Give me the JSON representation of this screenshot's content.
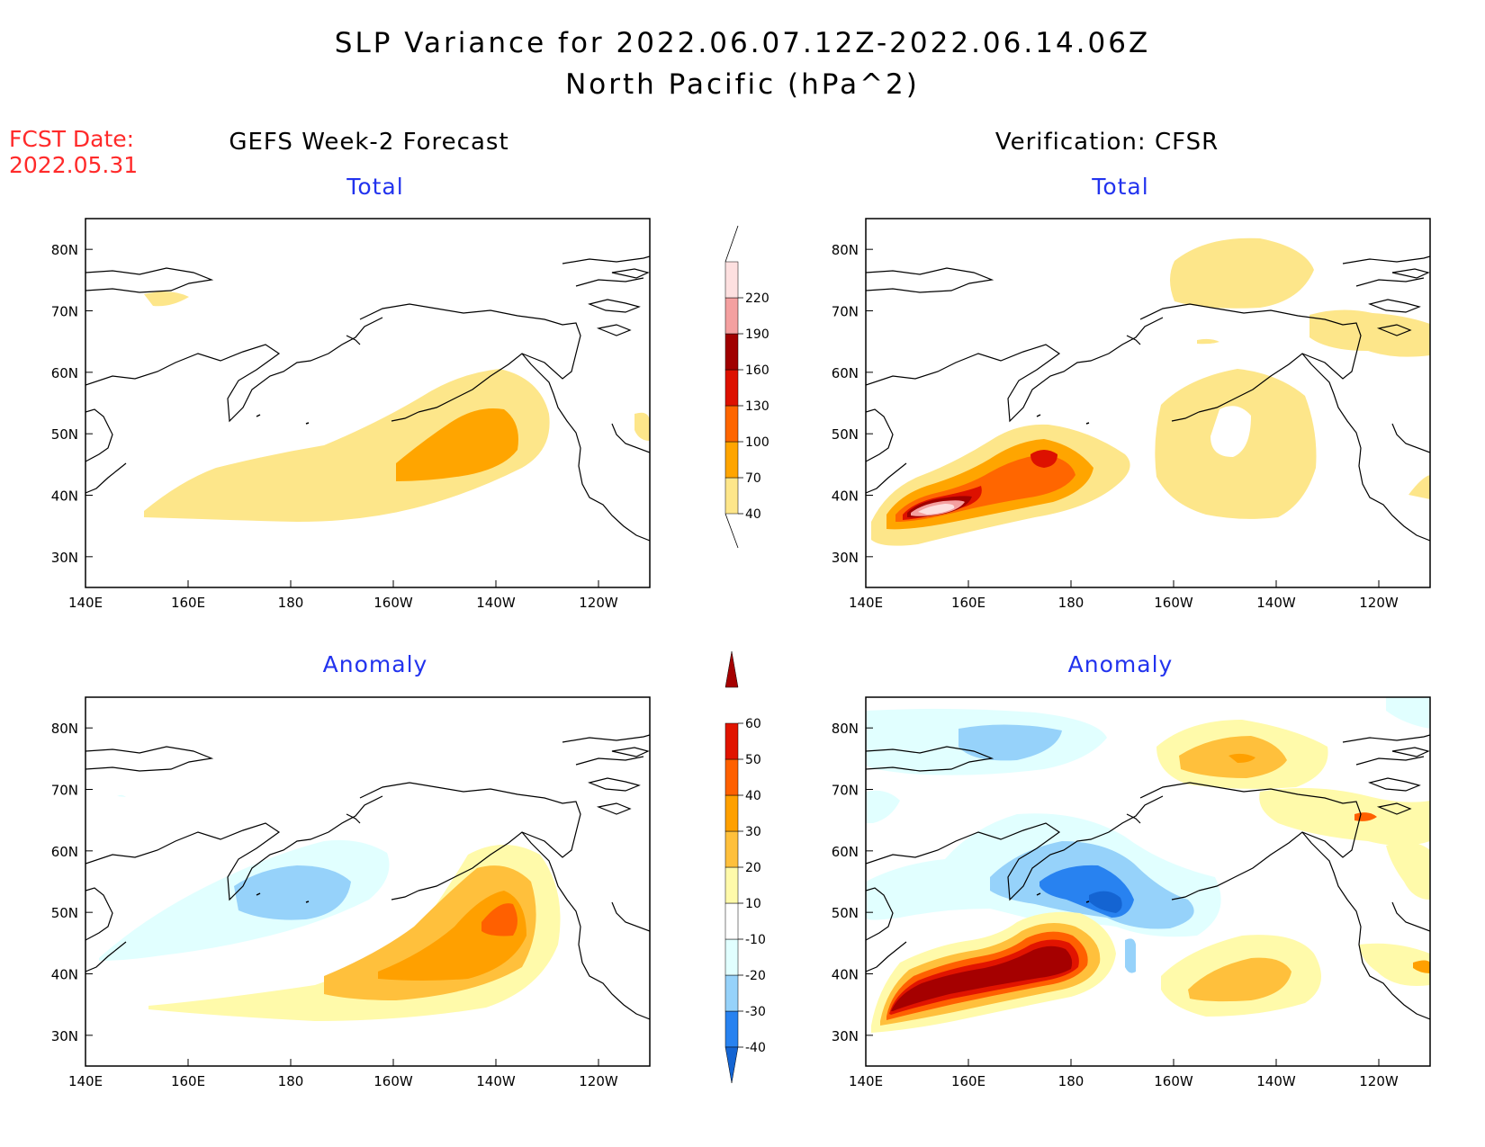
{
  "header": {
    "title": "SLP Variance for 2022.06.07.12Z-2022.06.14.06Z",
    "subtitle": "North Pacific (hPa^2)",
    "fcst_label": "FCST Date:",
    "fcst_date": "2022.05.31"
  },
  "columns": {
    "left": "GEFS Week-2 Forecast",
    "right": "Verification: CFSR"
  },
  "panels": [
    {
      "id": "forecast-total",
      "title": "Total"
    },
    {
      "id": "verification-total",
      "title": "Total"
    },
    {
      "id": "forecast-anomaly",
      "title": "Anomaly"
    },
    {
      "id": "verification-anomaly",
      "title": "Anomaly"
    }
  ],
  "axes": {
    "x_ticks": [
      "140E",
      "160E",
      "180",
      "160W",
      "140W",
      "120W"
    ],
    "y_ticks": [
      "80N",
      "70N",
      "60N",
      "50N",
      "40N",
      "30N"
    ],
    "lon_range_east": [
      140,
      250
    ],
    "lat_range": [
      25,
      85
    ]
  },
  "colorbars": {
    "total": {
      "labels": [
        "40",
        "70",
        "100",
        "130",
        "160",
        "190",
        "220"
      ],
      "colors": [
        "#fde68a",
        "#ffa500",
        "#ff6600",
        "#dd1100",
        "#a00000",
        "#f4a0a0",
        "#fde0e0"
      ]
    },
    "anomaly": {
      "labels": [
        "-40",
        "-30",
        "-20",
        "-10",
        "10",
        "20",
        "30",
        "40",
        "50",
        "60"
      ],
      "colors": [
        "#1464d2",
        "#2882f0",
        "#96d2fa",
        "#e1ffff",
        "#ffffff",
        "#fffaaa",
        "#ffc03c",
        "#ffa000",
        "#ff6000",
        "#e11400",
        "#a50000"
      ]
    }
  },
  "colors": {
    "title_blue": "#2233ee",
    "fcst_red": "#ff2a2a"
  }
}
